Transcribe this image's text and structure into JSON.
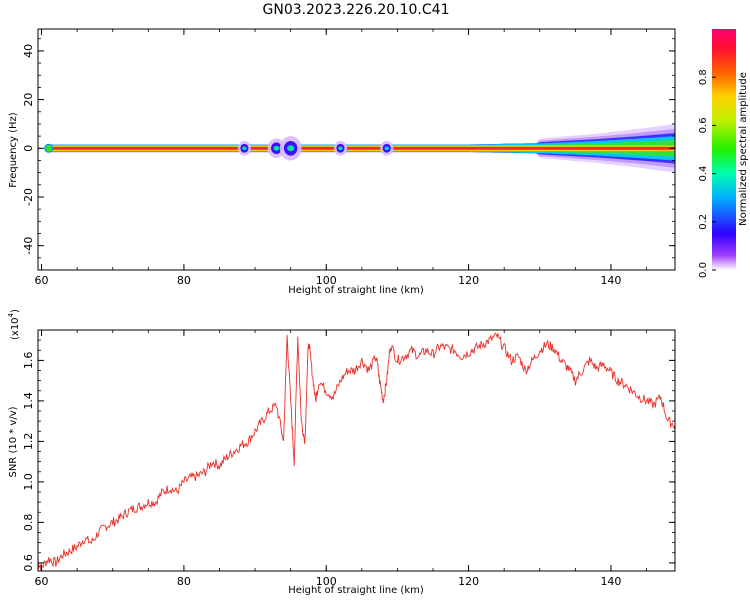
{
  "title": "GN03.2023.226.20.10.C41",
  "chart_data": [
    {
      "type": "heatmap",
      "xlabel": "Height of straight line (km)",
      "ylabel": "Frequency (Hz)",
      "xlim": [
        59.5,
        149
      ],
      "ylim": [
        -50,
        49
      ],
      "xticks": [
        60,
        80,
        100,
        120,
        140
      ],
      "yticks": [
        40,
        20,
        0,
        -20,
        -40
      ],
      "colorbar": {
        "label": "Normalized spectral amplitude",
        "range": [
          0,
          1
        ],
        "ticks": [
          "0.0",
          "0.2",
          "0.4",
          "0.6",
          "0.8"
        ],
        "tick_values": [
          0.0,
          0.2,
          0.4,
          0.6,
          0.8
        ]
      },
      "band": {
        "x": [
          61,
          149
        ],
        "center_freq": 0,
        "halfwidth_hz": [
          1.5,
          1.5,
          1.5,
          1.5,
          2,
          3,
          4,
          5
        ],
        "halfwidth_x": [
          61,
          100,
          110,
          120,
          130,
          138,
          144,
          149
        ]
      },
      "spots": [
        {
          "x": 88.5,
          "amp": 0.15,
          "spread_hz": 3
        },
        {
          "x": 93,
          "amp": 0.2,
          "spread_hz": 4
        },
        {
          "x": 95,
          "amp": 0.25,
          "spread_hz": 5
        },
        {
          "x": 102,
          "amp": 0.2,
          "spread_hz": 3
        },
        {
          "x": 108.5,
          "amp": 0.2,
          "spread_hz": 3
        }
      ]
    },
    {
      "type": "line",
      "xlabel": "Height of straight line (km)",
      "ylabel": "SNR (10 * v/v)",
      "multiplier": "(x10",
      "multiplier_exp": "4",
      "multiplier_close": ")",
      "xlim": [
        59.5,
        149
      ],
      "ylim": [
        0.56,
        1.75
      ],
      "xticks": [
        60,
        80,
        100,
        120,
        140
      ],
      "yticks": [
        0.6,
        0.8,
        1.0,
        1.2,
        1.4,
        1.6
      ],
      "ytick_labels": [
        "0.6",
        "0.8",
        "1.0",
        "1.2",
        "1.4",
        "1.6"
      ],
      "series": [
        {
          "color": "#e8302a",
          "x": [
            59.5,
            60,
            61,
            62,
            63,
            64,
            65,
            66,
            67,
            68,
            69,
            70,
            71,
            72,
            73,
            74,
            75,
            76,
            77,
            78,
            79,
            80,
            81,
            82,
            83,
            84,
            85,
            86,
            87,
            88,
            89,
            90,
            91,
            92,
            93,
            94,
            94.5,
            95,
            95.5,
            96,
            96.5,
            97,
            97.5,
            98,
            98.5,
            99,
            100,
            101,
            102,
            103,
            104,
            105,
            106,
            107,
            107.5,
            108,
            108.5,
            109,
            110,
            111,
            112,
            113,
            114,
            115,
            116,
            117,
            118,
            119,
            120,
            121,
            122,
            123,
            124,
            125,
            126,
            127,
            128,
            129,
            130,
            131,
            132,
            133,
            134,
            135,
            136,
            137,
            138,
            139,
            140,
            141,
            142,
            143,
            144,
            145,
            146,
            147,
            148,
            149
          ],
          "y": [
            0.6,
            0.58,
            0.62,
            0.6,
            0.64,
            0.66,
            0.68,
            0.72,
            0.7,
            0.75,
            0.78,
            0.8,
            0.82,
            0.85,
            0.87,
            0.88,
            0.9,
            0.9,
            0.95,
            0.97,
            0.95,
            1.0,
            1.02,
            1.03,
            1.05,
            1.1,
            1.08,
            1.12,
            1.15,
            1.18,
            1.2,
            1.25,
            1.3,
            1.35,
            1.38,
            1.2,
            1.72,
            1.4,
            1.1,
            1.72,
            1.3,
            1.2,
            1.7,
            1.55,
            1.4,
            1.5,
            1.45,
            1.42,
            1.5,
            1.55,
            1.55,
            1.6,
            1.55,
            1.62,
            1.5,
            1.4,
            1.5,
            1.68,
            1.6,
            1.62,
            1.65,
            1.62,
            1.65,
            1.63,
            1.67,
            1.66,
            1.65,
            1.62,
            1.64,
            1.66,
            1.68,
            1.7,
            1.72,
            1.66,
            1.6,
            1.62,
            1.55,
            1.6,
            1.65,
            1.68,
            1.66,
            1.6,
            1.56,
            1.5,
            1.55,
            1.6,
            1.56,
            1.58,
            1.54,
            1.5,
            1.48,
            1.45,
            1.42,
            1.4,
            1.38,
            1.42,
            1.3,
            1.28
          ]
        }
      ]
    }
  ]
}
